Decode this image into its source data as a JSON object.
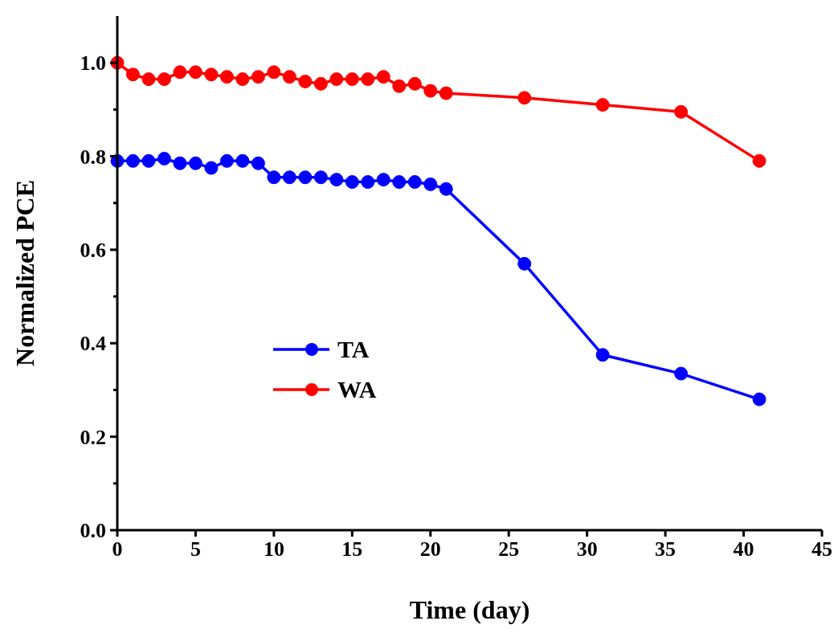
{
  "chart_data": {
    "type": "line",
    "xlabel": "Time (day)",
    "ylabel": "Normalized PCE",
    "x": [
      0,
      1,
      2,
      3,
      4,
      5,
      6,
      7,
      8,
      9,
      10,
      11,
      12,
      13,
      14,
      15,
      16,
      17,
      18,
      19,
      20,
      21,
      26,
      31,
      36,
      41
    ],
    "series": [
      {
        "name": "TA",
        "color": "#0000ff",
        "values": [
          0.79,
          0.79,
          0.79,
          0.795,
          0.785,
          0.785,
          0.775,
          0.79,
          0.79,
          0.785,
          0.755,
          0.755,
          0.755,
          0.755,
          0.75,
          0.745,
          0.745,
          0.75,
          0.745,
          0.745,
          0.74,
          0.73,
          0.57,
          0.375,
          0.335,
          0.28
        ]
      },
      {
        "name": "WA",
        "color": "#ff0000",
        "values": [
          1.0,
          0.975,
          0.965,
          0.965,
          0.98,
          0.98,
          0.975,
          0.97,
          0.965,
          0.97,
          0.98,
          0.97,
          0.96,
          0.955,
          0.965,
          0.965,
          0.965,
          0.97,
          0.95,
          0.955,
          0.94,
          0.935,
          0.925,
          0.91,
          0.895,
          0.79
        ]
      }
    ],
    "xlim": [
      0,
      45
    ],
    "xticks": [
      0,
      5,
      10,
      15,
      20,
      25,
      30,
      35,
      40,
      45
    ],
    "ylim": [
      0,
      1.1
    ],
    "yticks": [
      {
        "value": 0,
        "label": "0.0"
      },
      {
        "value": 0.1,
        "label": null
      },
      {
        "value": 0.2,
        "label": "0.2"
      },
      {
        "value": 0.3,
        "label": null
      },
      {
        "value": 0.4,
        "label": "0.4"
      },
      {
        "value": 0.5,
        "label": null
      },
      {
        "value": 0.6,
        "label": "0.6"
      },
      {
        "value": 0.7,
        "label": null
      },
      {
        "value": 0.8,
        "label": "0.8"
      },
      {
        "value": 0.9,
        "label": null
      },
      {
        "value": 1.0,
        "label": "1.0"
      }
    ],
    "legend": "left",
    "marker": "circle",
    "line_style": "solid",
    "grid": false
  }
}
